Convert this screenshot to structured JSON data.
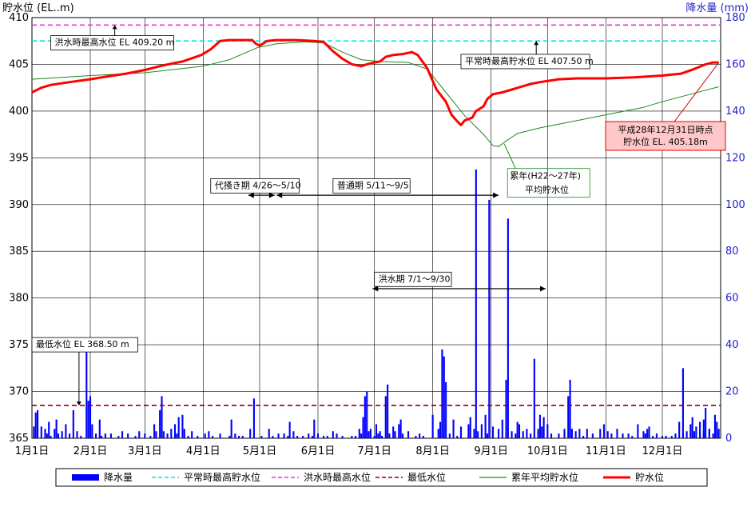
{
  "chart_data": {
    "type": "bar+line",
    "left_axis": {
      "label": "貯水位 (EL..m)",
      "min": 365,
      "max": 410,
      "ticks": [
        365,
        370,
        375,
        380,
        385,
        390,
        395,
        400,
        405,
        410
      ]
    },
    "right_axis": {
      "label": "降水量 (mm)",
      "min": 0,
      "max": 180,
      "ticks": [
        0,
        20,
        40,
        60,
        80,
        100,
        120,
        140,
        160,
        180
      ]
    },
    "x_axis": {
      "days": 366,
      "month_labels": [
        "1月1日",
        "2月1日",
        "3月1日",
        "4月1日",
        "5月1日",
        "6月1日",
        "7月1日",
        "8月1日",
        "9月1日",
        "10月1日",
        "11月1日",
        "12月1日"
      ],
      "month_start_days": [
        0,
        31,
        60,
        91,
        121,
        152,
        182,
        213,
        244,
        274,
        305,
        335
      ]
    },
    "reference_lines": [
      {
        "name": "平常時最高貯水位",
        "value": 407.5,
        "color": "#00e5e5",
        "dash": "6,4"
      },
      {
        "name": "洪水時最高水位",
        "value": 409.2,
        "color": "#e633e6",
        "dash": "6,4"
      },
      {
        "name": "最低水位",
        "value": 368.5,
        "color": "#8b0000",
        "dash": "6,4"
      }
    ],
    "series": [
      {
        "name": "貯水位",
        "color": "#ff0000",
        "points": [
          [
            0,
            402.0
          ],
          [
            5,
            402.5
          ],
          [
            10,
            402.8
          ],
          [
            20,
            403.1
          ],
          [
            31,
            403.4
          ],
          [
            40,
            403.7
          ],
          [
            50,
            404.0
          ],
          [
            60,
            404.4
          ],
          [
            70,
            404.9
          ],
          [
            80,
            405.3
          ],
          [
            90,
            406.0
          ],
          [
            95,
            406.6
          ],
          [
            100,
            407.5
          ],
          [
            105,
            407.6
          ],
          [
            110,
            407.6
          ],
          [
            117,
            407.6
          ],
          [
            119,
            407.2
          ],
          [
            121,
            407.0
          ],
          [
            125,
            407.5
          ],
          [
            130,
            407.6
          ],
          [
            140,
            407.6
          ],
          [
            150,
            407.5
          ],
          [
            155,
            407.4
          ],
          [
            160,
            406.4
          ],
          [
            165,
            405.6
          ],
          [
            170,
            405.0
          ],
          [
            175,
            404.8
          ],
          [
            178,
            405.0
          ],
          [
            182,
            405.2
          ],
          [
            185,
            405.3
          ],
          [
            188,
            405.8
          ],
          [
            192,
            406.0
          ],
          [
            197,
            406.1
          ],
          [
            202,
            406.3
          ],
          [
            205,
            406.0
          ],
          [
            210,
            404.6
          ],
          [
            215,
            402.3
          ],
          [
            220,
            401.0
          ],
          [
            223,
            399.6
          ],
          [
            226,
            398.9
          ],
          [
            228,
            398.5
          ],
          [
            230,
            399.0
          ],
          [
            234,
            399.3
          ],
          [
            236,
            400.0
          ],
          [
            240,
            400.5
          ],
          [
            242,
            401.3
          ],
          [
            245,
            401.8
          ],
          [
            250,
            402.0
          ],
          [
            255,
            402.3
          ],
          [
            260,
            402.6
          ],
          [
            265,
            402.9
          ],
          [
            270,
            403.1
          ],
          [
            280,
            403.4
          ],
          [
            290,
            403.5
          ],
          [
            305,
            403.5
          ],
          [
            320,
            403.6
          ],
          [
            335,
            403.8
          ],
          [
            345,
            404.0
          ],
          [
            352,
            404.5
          ],
          [
            358,
            405.0
          ],
          [
            362,
            405.2
          ],
          [
            365,
            405.18
          ]
        ]
      },
      {
        "name": "累年平均貯水位",
        "color": "#1a8a1a",
        "points": [
          [
            0,
            403.4
          ],
          [
            31,
            403.8
          ],
          [
            60,
            404.1
          ],
          [
            91,
            404.8
          ],
          [
            105,
            405.5
          ],
          [
            120,
            406.8
          ],
          [
            130,
            407.2
          ],
          [
            145,
            407.4
          ],
          [
            155,
            407.3
          ],
          [
            165,
            406.3
          ],
          [
            175,
            405.5
          ],
          [
            185,
            405.3
          ],
          [
            200,
            405.2
          ],
          [
            210,
            404.5
          ],
          [
            220,
            402.0
          ],
          [
            230,
            399.5
          ],
          [
            240,
            397.5
          ],
          [
            245,
            396.3
          ],
          [
            248,
            396.2
          ],
          [
            252,
            396.8
          ],
          [
            258,
            397.6
          ],
          [
            270,
            398.2
          ],
          [
            290,
            399.0
          ],
          [
            310,
            399.8
          ],
          [
            325,
            400.4
          ],
          [
            335,
            401.0
          ],
          [
            350,
            401.8
          ],
          [
            365,
            402.6
          ]
        ]
      }
    ],
    "rainfall": {
      "name": "降水量",
      "color": "#0000ff",
      "days": [
        [
          1,
          5
        ],
        [
          2,
          11
        ],
        [
          3,
          12
        ],
        [
          5,
          5
        ],
        [
          7,
          4
        ],
        [
          8,
          2
        ],
        [
          9,
          7
        ],
        [
          10,
          1
        ],
        [
          12,
          4
        ],
        [
          13,
          8
        ],
        [
          14,
          2
        ],
        [
          16,
          3
        ],
        [
          18,
          6
        ],
        [
          20,
          2
        ],
        [
          22,
          12
        ],
        [
          24,
          3
        ],
        [
          26,
          1
        ],
        [
          29,
          42
        ],
        [
          30,
          16
        ],
        [
          31,
          18
        ],
        [
          32,
          6
        ],
        [
          34,
          2
        ],
        [
          36,
          8
        ],
        [
          37,
          1
        ],
        [
          39,
          2
        ],
        [
          42,
          2
        ],
        [
          46,
          1
        ],
        [
          48,
          3
        ],
        [
          51,
          2
        ],
        [
          55,
          1
        ],
        [
          57,
          3
        ],
        [
          60,
          2
        ],
        [
          63,
          1
        ],
        [
          65,
          6
        ],
        [
          66,
          3
        ],
        [
          68,
          12
        ],
        [
          69,
          18
        ],
        [
          70,
          3
        ],
        [
          72,
          2
        ],
        [
          74,
          4
        ],
        [
          76,
          6
        ],
        [
          77,
          2
        ],
        [
          78,
          9
        ],
        [
          80,
          10
        ],
        [
          81,
          4
        ],
        [
          83,
          1
        ],
        [
          85,
          3
        ],
        [
          88,
          1
        ],
        [
          92,
          2
        ],
        [
          94,
          3
        ],
        [
          96,
          1
        ],
        [
          100,
          2
        ],
        [
          105,
          1
        ],
        [
          106,
          8
        ],
        [
          108,
          2
        ],
        [
          110,
          1
        ],
        [
          112,
          1
        ],
        [
          116,
          4
        ],
        [
          118,
          17
        ],
        [
          122,
          1
        ],
        [
          126,
          4
        ],
        [
          128,
          1
        ],
        [
          131,
          2
        ],
        [
          134,
          2
        ],
        [
          136,
          1
        ],
        [
          137,
          7
        ],
        [
          139,
          3
        ],
        [
          141,
          1
        ],
        [
          144,
          1
        ],
        [
          147,
          2
        ],
        [
          149,
          1
        ],
        [
          150,
          8
        ],
        [
          152,
          2
        ],
        [
          155,
          1
        ],
        [
          157,
          1
        ],
        [
          160,
          3
        ],
        [
          162,
          2
        ],
        [
          165,
          1
        ],
        [
          170,
          1
        ],
        [
          172,
          1
        ],
        [
          174,
          4
        ],
        [
          175,
          2
        ],
        [
          176,
          9
        ],
        [
          177,
          18
        ],
        [
          178,
          20
        ],
        [
          179,
          3
        ],
        [
          180,
          4
        ],
        [
          182,
          1
        ],
        [
          183,
          6
        ],
        [
          184,
          2
        ],
        [
          185,
          3
        ],
        [
          186,
          1
        ],
        [
          188,
          18
        ],
        [
          189,
          23
        ],
        [
          190,
          2
        ],
        [
          192,
          5
        ],
        [
          193,
          3
        ],
        [
          195,
          6
        ],
        [
          196,
          8
        ],
        [
          197,
          2
        ],
        [
          200,
          3
        ],
        [
          204,
          1
        ],
        [
          206,
          2
        ],
        [
          208,
          1
        ],
        [
          213,
          10
        ],
        [
          216,
          4
        ],
        [
          217,
          7
        ],
        [
          218,
          38
        ],
        [
          219,
          35
        ],
        [
          220,
          24
        ],
        [
          222,
          2
        ],
        [
          224,
          8
        ],
        [
          226,
          1
        ],
        [
          228,
          5
        ],
        [
          232,
          6
        ],
        [
          233,
          9
        ],
        [
          235,
          4
        ],
        [
          236,
          115
        ],
        [
          237,
          3
        ],
        [
          239,
          6
        ],
        [
          241,
          10
        ],
        [
          242,
          2
        ],
        [
          243,
          102
        ],
        [
          245,
          5
        ],
        [
          248,
          4
        ],
        [
          250,
          8
        ],
        [
          252,
          25
        ],
        [
          253,
          94
        ],
        [
          255,
          3
        ],
        [
          257,
          2
        ],
        [
          258,
          7
        ],
        [
          259,
          6
        ],
        [
          261,
          3
        ],
        [
          263,
          4
        ],
        [
          265,
          2
        ],
        [
          267,
          34
        ],
        [
          269,
          4
        ],
        [
          270,
          10
        ],
        [
          271,
          5
        ],
        [
          272,
          9
        ],
        [
          274,
          6
        ],
        [
          276,
          2
        ],
        [
          280,
          2
        ],
        [
          283,
          4
        ],
        [
          285,
          18
        ],
        [
          286,
          25
        ],
        [
          287,
          4
        ],
        [
          289,
          3
        ],
        [
          291,
          4
        ],
        [
          293,
          1
        ],
        [
          295,
          4
        ],
        [
          298,
          2
        ],
        [
          302,
          4
        ],
        [
          304,
          6
        ],
        [
          306,
          3
        ],
        [
          308,
          2
        ],
        [
          311,
          4
        ],
        [
          314,
          2
        ],
        [
          317,
          2
        ],
        [
          319,
          1
        ],
        [
          322,
          6
        ],
        [
          325,
          3
        ],
        [
          326,
          2
        ],
        [
          327,
          4
        ],
        [
          328,
          5
        ],
        [
          330,
          1
        ],
        [
          332,
          2
        ],
        [
          335,
          1
        ],
        [
          337,
          1
        ],
        [
          340,
          1
        ],
        [
          342,
          2
        ],
        [
          344,
          7
        ],
        [
          346,
          2
        ],
        [
          348,
          3
        ],
        [
          350,
          6
        ],
        [
          351,
          9
        ],
        [
          352,
          3
        ],
        [
          353,
          5
        ],
        [
          355,
          2
        ],
        [
          357,
          3
        ],
        [
          360,
          4
        ],
        [
          362,
          2
        ],
        [
          363,
          10
        ],
        [
          364,
          7
        ],
        [
          365,
          4
        ],
        [
          346,
          30
        ],
        [
          360,
          4
        ],
        [
          357,
          8
        ],
        [
          358,
          13
        ],
        [
          355,
          7
        ]
      ]
    },
    "annotations": [
      {
        "text": "洪水時最高水位  EL 409.20 m",
        "day": 10,
        "value": 407.3,
        "arrow_day": 44,
        "arrow_value": 409.2
      },
      {
        "text": "平常時最高貯水位  EL 407.50 m",
        "day": 228,
        "value": 405.3,
        "arrow_day": 268,
        "arrow_value": 407.5
      },
      {
        "text": "最低水位  EL 368.50 m",
        "day": 0,
        "value": 375.0,
        "arrow_day": 25,
        "arrow_value": 368.5
      },
      {
        "text": "代掻き期 4/26～5/10",
        "day": 95,
        "value": 392.0
      },
      {
        "text": "普通期 5/11～9/5",
        "day": 160,
        "value": 392.0
      },
      {
        "text": "洪水期 7/1～9/30",
        "day": 182,
        "value": 382.0
      },
      {
        "text": "累年(H22～27年)",
        "day": 254,
        "value": 393.0
      },
      {
        "text": "平均貯水位",
        "day": 262,
        "value": 391.5
      }
    ],
    "period_arrows": [
      {
        "start": 115,
        "end": 129,
        "value": 391.0
      },
      {
        "start": 130,
        "end": 248,
        "value": 391.0
      },
      {
        "start": 181,
        "end": 273,
        "value": 381.0
      }
    ],
    "callout": {
      "line1": "平成28年12月31日時点",
      "line2": "貯水位 EL. 405.18m"
    },
    "legend": [
      {
        "label": "降水量",
        "type": "bar",
        "color": "#0000ff"
      },
      {
        "label": "平常時最高貯水位",
        "type": "dash",
        "color": "#00e5e5"
      },
      {
        "label": "洪水時最高水位",
        "type": "dash",
        "color": "#e633e6"
      },
      {
        "label": "最低水位",
        "type": "dash",
        "color": "#8b0000"
      },
      {
        "label": "累年平均貯水位",
        "type": "line",
        "color": "#1a8a1a"
      },
      {
        "label": "貯水位",
        "type": "thick",
        "color": "#ff0000"
      }
    ]
  }
}
